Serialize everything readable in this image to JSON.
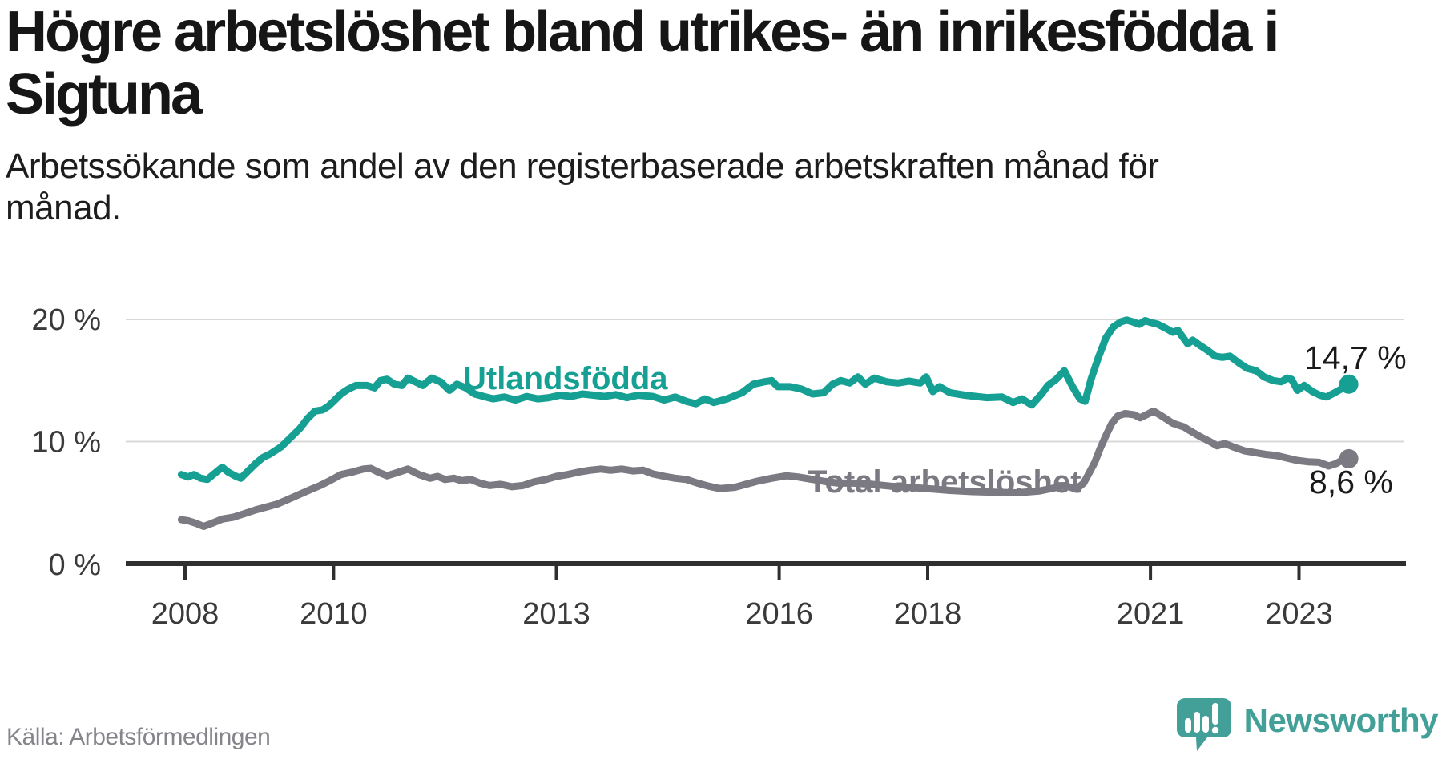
{
  "header": {
    "title_line1": "Högre arbetslöshet bland utrikes- än inrikesfödda i",
    "title_line2": "Sigtuna",
    "subtitle_line1": "Arbetssökande som andel av den registerbaserade arbetskraften månad för",
    "subtitle_line2": "månad."
  },
  "footer": {
    "source": "Källa: Arbetsförmedlingen",
    "brand": "Newsworthy"
  },
  "colors": {
    "teal": "#16a094",
    "gray": "#7b7982",
    "axis": "#2f2f2f",
    "grid": "#d8d8d8",
    "tick_text": "#3a3a3a",
    "value_text": "#1a1a1a",
    "brand_teal": "#43a098"
  },
  "chart_data": {
    "type": "line",
    "title": "Högre arbetslöshet bland utrikes- än inrikesfödda i Sigtuna",
    "subtitle": "Arbetssökande som andel av den registerbaserade arbetskraften månad för månad.",
    "xlabel": "",
    "ylabel": "",
    "xlim": [
      2007.8,
      2024.4
    ],
    "ylim": [
      0,
      21
    ],
    "grid": "horizontal",
    "legend_position": "inline-labels",
    "x_axis": {
      "ticks": [
        2008,
        2010,
        2013,
        2016,
        2018,
        2021,
        2023
      ],
      "labels": [
        "2008",
        "2010",
        "2013",
        "2016",
        "2018",
        "2021",
        "2023"
      ]
    },
    "y_axis": {
      "ticks": [
        0,
        10,
        20
      ],
      "labels": [
        "0 %",
        "10 %",
        "20 %"
      ]
    },
    "series": [
      {
        "name": "Utlandsfödda",
        "color": "#16a094",
        "end_value": 14.7,
        "end_label": "14,7 %",
        "points": [
          [
            2007.95,
            7.3
          ],
          [
            2008.04,
            7.1
          ],
          [
            2008.12,
            7.3
          ],
          [
            2008.21,
            7.0
          ],
          [
            2008.3,
            6.9
          ],
          [
            2008.42,
            7.5
          ],
          [
            2008.5,
            7.9
          ],
          [
            2008.58,
            7.5
          ],
          [
            2008.67,
            7.2
          ],
          [
            2008.75,
            7.0
          ],
          [
            2008.85,
            7.6
          ],
          [
            2008.95,
            8.2
          ],
          [
            2009.05,
            8.7
          ],
          [
            2009.15,
            9.0
          ],
          [
            2009.3,
            9.6
          ],
          [
            2009.45,
            10.5
          ],
          [
            2009.55,
            11.1
          ],
          [
            2009.65,
            11.9
          ],
          [
            2009.75,
            12.5
          ],
          [
            2009.85,
            12.6
          ],
          [
            2009.93,
            12.9
          ],
          [
            2010.0,
            13.3
          ],
          [
            2010.1,
            13.9
          ],
          [
            2010.2,
            14.3
          ],
          [
            2010.3,
            14.6
          ],
          [
            2010.45,
            14.6
          ],
          [
            2010.55,
            14.4
          ],
          [
            2010.63,
            15.0
          ],
          [
            2010.72,
            15.1
          ],
          [
            2010.82,
            14.7
          ],
          [
            2010.92,
            14.6
          ],
          [
            2011.0,
            15.2
          ],
          [
            2011.1,
            14.9
          ],
          [
            2011.2,
            14.6
          ],
          [
            2011.32,
            15.2
          ],
          [
            2011.44,
            14.9
          ],
          [
            2011.56,
            14.2
          ],
          [
            2011.66,
            14.7
          ],
          [
            2011.78,
            14.4
          ],
          [
            2011.9,
            13.9
          ],
          [
            2012.02,
            13.7
          ],
          [
            2012.15,
            13.5
          ],
          [
            2012.3,
            13.65
          ],
          [
            2012.45,
            13.4
          ],
          [
            2012.6,
            13.7
          ],
          [
            2012.75,
            13.5
          ],
          [
            2012.9,
            13.6
          ],
          [
            2013.05,
            13.8
          ],
          [
            2013.2,
            13.7
          ],
          [
            2013.35,
            13.9
          ],
          [
            2013.5,
            13.8
          ],
          [
            2013.65,
            13.7
          ],
          [
            2013.8,
            13.85
          ],
          [
            2013.95,
            13.6
          ],
          [
            2014.1,
            13.8
          ],
          [
            2014.3,
            13.7
          ],
          [
            2014.45,
            13.4
          ],
          [
            2014.6,
            13.65
          ],
          [
            2014.75,
            13.3
          ],
          [
            2014.88,
            13.1
          ],
          [
            2015.0,
            13.5
          ],
          [
            2015.12,
            13.2
          ],
          [
            2015.3,
            13.5
          ],
          [
            2015.5,
            14.0
          ],
          [
            2015.65,
            14.7
          ],
          [
            2015.8,
            14.9
          ],
          [
            2015.9,
            15.0
          ],
          [
            2015.98,
            14.5
          ],
          [
            2016.15,
            14.5
          ],
          [
            2016.3,
            14.3
          ],
          [
            2016.45,
            13.9
          ],
          [
            2016.6,
            14.0
          ],
          [
            2016.72,
            14.7
          ],
          [
            2016.83,
            15.0
          ],
          [
            2016.95,
            14.8
          ],
          [
            2017.06,
            15.3
          ],
          [
            2017.16,
            14.7
          ],
          [
            2017.28,
            15.2
          ],
          [
            2017.45,
            14.9
          ],
          [
            2017.6,
            14.8
          ],
          [
            2017.75,
            14.95
          ],
          [
            2017.9,
            14.8
          ],
          [
            2017.98,
            15.3
          ],
          [
            2018.07,
            14.1
          ],
          [
            2018.16,
            14.5
          ],
          [
            2018.3,
            14.0
          ],
          [
            2018.5,
            13.8
          ],
          [
            2018.65,
            13.7
          ],
          [
            2018.8,
            13.6
          ],
          [
            2019.0,
            13.65
          ],
          [
            2019.15,
            13.2
          ],
          [
            2019.27,
            13.5
          ],
          [
            2019.4,
            13.0
          ],
          [
            2019.52,
            13.8
          ],
          [
            2019.62,
            14.6
          ],
          [
            2019.73,
            15.1
          ],
          [
            2019.84,
            15.8
          ],
          [
            2019.95,
            14.5
          ],
          [
            2020.05,
            13.5
          ],
          [
            2020.12,
            13.3
          ],
          [
            2020.2,
            15.1
          ],
          [
            2020.3,
            16.9
          ],
          [
            2020.4,
            18.5
          ],
          [
            2020.5,
            19.4
          ],
          [
            2020.6,
            19.8
          ],
          [
            2020.68,
            19.95
          ],
          [
            2020.76,
            19.8
          ],
          [
            2020.85,
            19.6
          ],
          [
            2020.93,
            19.9
          ],
          [
            2021.0,
            19.75
          ],
          [
            2021.1,
            19.6
          ],
          [
            2021.2,
            19.3
          ],
          [
            2021.3,
            18.95
          ],
          [
            2021.37,
            19.1
          ],
          [
            2021.5,
            18.0
          ],
          [
            2021.57,
            18.3
          ],
          [
            2021.66,
            17.9
          ],
          [
            2021.76,
            17.5
          ],
          [
            2021.87,
            17.0
          ],
          [
            2021.97,
            16.9
          ],
          [
            2022.07,
            17.0
          ],
          [
            2022.2,
            16.4
          ],
          [
            2022.3,
            16.0
          ],
          [
            2022.42,
            15.8
          ],
          [
            2022.53,
            15.3
          ],
          [
            2022.65,
            15.0
          ],
          [
            2022.76,
            14.9
          ],
          [
            2022.84,
            15.2
          ],
          [
            2022.9,
            15.1
          ],
          [
            2022.98,
            14.2
          ],
          [
            2023.07,
            14.6
          ],
          [
            2023.18,
            14.1
          ],
          [
            2023.28,
            13.8
          ],
          [
            2023.37,
            13.65
          ],
          [
            2023.48,
            14.0
          ],
          [
            2023.58,
            14.35
          ],
          [
            2023.67,
            14.7
          ]
        ]
      },
      {
        "name": "Total arbetslöshet",
        "color": "#7b7982",
        "end_value": 8.6,
        "end_label": "8,6 %",
        "points": [
          [
            2007.95,
            3.6
          ],
          [
            2008.05,
            3.5
          ],
          [
            2008.15,
            3.3
          ],
          [
            2008.25,
            3.05
          ],
          [
            2008.36,
            3.3
          ],
          [
            2008.5,
            3.65
          ],
          [
            2008.65,
            3.8
          ],
          [
            2008.8,
            4.1
          ],
          [
            2008.95,
            4.4
          ],
          [
            2009.1,
            4.65
          ],
          [
            2009.25,
            4.9
          ],
          [
            2009.4,
            5.3
          ],
          [
            2009.55,
            5.7
          ],
          [
            2009.7,
            6.1
          ],
          [
            2009.82,
            6.4
          ],
          [
            2009.95,
            6.8
          ],
          [
            2010.1,
            7.3
          ],
          [
            2010.25,
            7.5
          ],
          [
            2010.4,
            7.75
          ],
          [
            2010.5,
            7.8
          ],
          [
            2010.6,
            7.5
          ],
          [
            2010.72,
            7.2
          ],
          [
            2010.85,
            7.45
          ],
          [
            2011.0,
            7.75
          ],
          [
            2011.15,
            7.3
          ],
          [
            2011.3,
            7.0
          ],
          [
            2011.4,
            7.15
          ],
          [
            2011.5,
            6.9
          ],
          [
            2011.62,
            7.0
          ],
          [
            2011.72,
            6.8
          ],
          [
            2011.85,
            6.9
          ],
          [
            2011.97,
            6.6
          ],
          [
            2012.1,
            6.4
          ],
          [
            2012.25,
            6.5
          ],
          [
            2012.4,
            6.3
          ],
          [
            2012.55,
            6.4
          ],
          [
            2012.7,
            6.7
          ],
          [
            2012.86,
            6.9
          ],
          [
            2013.0,
            7.15
          ],
          [
            2013.15,
            7.3
          ],
          [
            2013.3,
            7.5
          ],
          [
            2013.45,
            7.65
          ],
          [
            2013.6,
            7.75
          ],
          [
            2013.73,
            7.65
          ],
          [
            2013.88,
            7.75
          ],
          [
            2014.03,
            7.6
          ],
          [
            2014.17,
            7.65
          ],
          [
            2014.3,
            7.35
          ],
          [
            2014.46,
            7.15
          ],
          [
            2014.6,
            7.0
          ],
          [
            2014.75,
            6.9
          ],
          [
            2014.9,
            6.6
          ],
          [
            2015.05,
            6.35
          ],
          [
            2015.2,
            6.15
          ],
          [
            2015.4,
            6.25
          ],
          [
            2015.55,
            6.5
          ],
          [
            2015.7,
            6.75
          ],
          [
            2015.9,
            7.0
          ],
          [
            2016.1,
            7.2
          ],
          [
            2016.25,
            7.1
          ],
          [
            2016.4,
            6.95
          ],
          [
            2016.6,
            6.75
          ],
          [
            2016.8,
            6.6
          ],
          [
            2017.0,
            6.6
          ],
          [
            2017.25,
            6.5
          ],
          [
            2017.5,
            6.35
          ],
          [
            2017.75,
            6.25
          ],
          [
            2018.0,
            6.15
          ],
          [
            2018.3,
            6.0
          ],
          [
            2018.6,
            5.9
          ],
          [
            2018.9,
            5.85
          ],
          [
            2019.2,
            5.8
          ],
          [
            2019.5,
            5.95
          ],
          [
            2019.7,
            6.2
          ],
          [
            2019.85,
            6.4
          ],
          [
            2020.0,
            6.1
          ],
          [
            2020.1,
            6.6
          ],
          [
            2020.18,
            7.5
          ],
          [
            2020.25,
            8.3
          ],
          [
            2020.32,
            9.4
          ],
          [
            2020.4,
            10.5
          ],
          [
            2020.48,
            11.5
          ],
          [
            2020.56,
            12.1
          ],
          [
            2020.66,
            12.3
          ],
          [
            2020.78,
            12.2
          ],
          [
            2020.86,
            11.95
          ],
          [
            2020.98,
            12.3
          ],
          [
            2021.04,
            12.5
          ],
          [
            2021.15,
            12.1
          ],
          [
            2021.3,
            11.5
          ],
          [
            2021.45,
            11.2
          ],
          [
            2021.53,
            10.9
          ],
          [
            2021.67,
            10.4
          ],
          [
            2021.8,
            10.0
          ],
          [
            2021.9,
            9.65
          ],
          [
            2022.0,
            9.85
          ],
          [
            2022.12,
            9.55
          ],
          [
            2022.26,
            9.25
          ],
          [
            2022.4,
            9.1
          ],
          [
            2022.55,
            8.95
          ],
          [
            2022.7,
            8.85
          ],
          [
            2022.84,
            8.65
          ],
          [
            2022.98,
            8.45
          ],
          [
            2023.12,
            8.35
          ],
          [
            2023.27,
            8.3
          ],
          [
            2023.4,
            8.0
          ],
          [
            2023.5,
            8.2
          ],
          [
            2023.6,
            8.55
          ],
          [
            2023.67,
            8.6
          ]
        ]
      }
    ]
  }
}
